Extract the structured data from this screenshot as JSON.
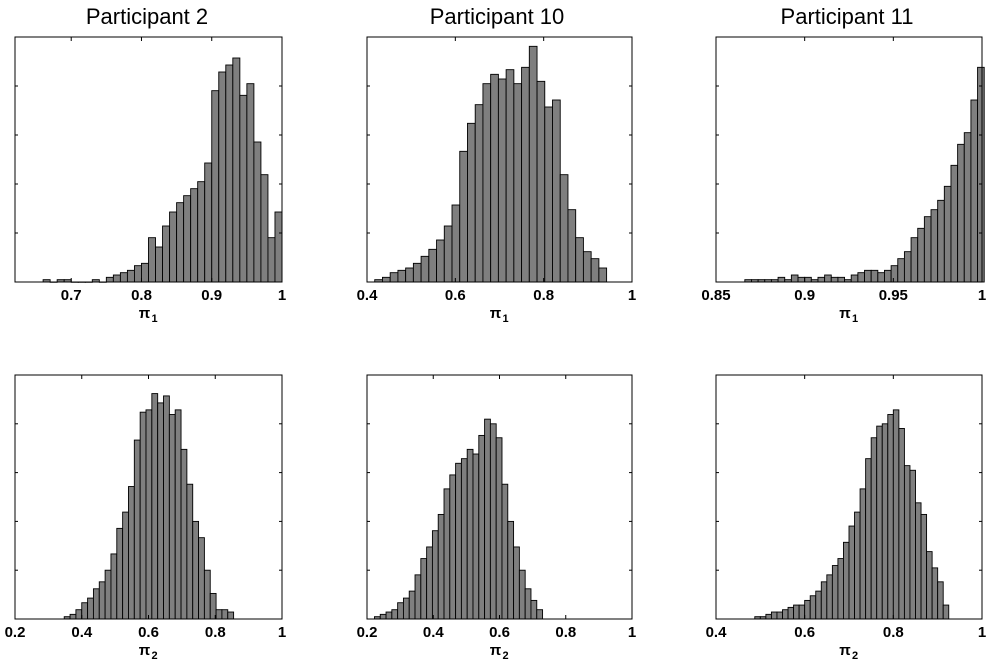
{
  "chart_data": [
    {
      "type": "bar",
      "column_title": "Participant 2",
      "xlabel": "π",
      "xlabel_sub": "1",
      "xlim": [
        0.62,
        1.0
      ],
      "ylim": [
        0,
        105
      ],
      "xticks": [
        0.7,
        0.8,
        0.9,
        1.0
      ],
      "xtick_labels": [
        "0.7",
        "0.8",
        "0.9",
        "1"
      ],
      "bin_width": 0.01,
      "bin_starts": [
        0.66,
        0.67,
        0.68,
        0.69,
        0.7,
        0.71,
        0.72,
        0.73,
        0.74,
        0.75,
        0.76,
        0.77,
        0.78,
        0.79,
        0.8,
        0.81,
        0.82,
        0.83,
        0.84,
        0.85,
        0.86,
        0.87,
        0.88,
        0.89,
        0.9,
        0.91,
        0.92,
        0.93,
        0.94,
        0.95,
        0.96,
        0.97,
        0.98,
        0.99
      ],
      "values": [
        1,
        0,
        1,
        1,
        0,
        0,
        0,
        1,
        0,
        2,
        3,
        4,
        5,
        7,
        8,
        19,
        15,
        24,
        30,
        34,
        37,
        40,
        43,
        51,
        82,
        90,
        93,
        96,
        80,
        85,
        60,
        46,
        19,
        30
      ]
    },
    {
      "type": "bar",
      "column_title": "Participant 10",
      "xlabel": "π",
      "xlabel_sub": "1",
      "xlim": [
        0.4,
        1.0
      ],
      "ylim": [
        0,
        105
      ],
      "xticks": [
        0.4,
        0.6,
        0.8,
        1.0
      ],
      "xtick_labels": [
        "0.4",
        "0.6",
        "0.8",
        "1"
      ],
      "bin_width": 0.0175,
      "bin_starts": [
        0.4175,
        0.435,
        0.4525,
        0.47,
        0.4875,
        0.505,
        0.5225,
        0.54,
        0.5575,
        0.575,
        0.5925,
        0.61,
        0.6275,
        0.645,
        0.6625,
        0.68,
        0.6975,
        0.715,
        0.7325,
        0.75,
        0.7675,
        0.785,
        0.8025,
        0.82,
        0.8375,
        0.855,
        0.8725,
        0.89,
        0.9075,
        0.925
      ],
      "values": [
        1,
        2,
        4,
        5,
        6,
        8,
        11,
        14,
        18,
        24,
        33,
        56,
        68,
        76,
        85,
        89,
        87,
        91,
        85,
        92,
        101,
        86,
        75,
        78,
        46,
        31,
        19,
        13,
        10,
        6
      ]
    },
    {
      "type": "bar",
      "column_title": "Participant 11",
      "xlabel": "π",
      "xlabel_sub": "1",
      "xlim": [
        0.85,
        1.0
      ],
      "ylim": [
        0,
        105
      ],
      "xticks": [
        0.85,
        0.9,
        0.95,
        1.0
      ],
      "xtick_labels": [
        "0.85",
        "0.9",
        "0.95",
        "1"
      ],
      "bin_width": 0.00375,
      "bin_starts": [
        0.86625,
        0.87,
        0.87375,
        0.8775,
        0.88125,
        0.885,
        0.88875,
        0.8925,
        0.89625,
        0.9,
        0.90375,
        0.9075,
        0.91125,
        0.915,
        0.91875,
        0.9225,
        0.92625,
        0.93,
        0.93375,
        0.9375,
        0.94125,
        0.945,
        0.94875,
        0.9525,
        0.95625,
        0.96,
        0.96375,
        0.9675,
        0.97125,
        0.975,
        0.97875,
        0.9825,
        0.98625,
        0.99,
        0.99375,
        0.9975
      ],
      "values": [
        1,
        1,
        1,
        1,
        1,
        2,
        1,
        3,
        2,
        2,
        1,
        2,
        3,
        2,
        2,
        1,
        3,
        4,
        5,
        5,
        4,
        5,
        7,
        10,
        13,
        19,
        23,
        28,
        31,
        35,
        41,
        50,
        59,
        64,
        78,
        92
      ]
    },
    {
      "type": "bar",
      "column_title": "Participant 2",
      "xlabel": "π",
      "xlabel_sub": "2",
      "xlim": [
        0.2,
        1.0
      ],
      "ylim": [
        0,
        105
      ],
      "xticks": [
        0.2,
        0.4,
        0.6,
        0.8,
        1.0
      ],
      "xtick_labels": [
        "0.2",
        "0.4",
        "0.6",
        "0.8",
        "1"
      ],
      "bin_width": 0.0175,
      "bin_starts": [
        0.3475,
        0.365,
        0.3825,
        0.4,
        0.4175,
        0.435,
        0.4525,
        0.47,
        0.4875,
        0.505,
        0.5225,
        0.54,
        0.5575,
        0.575,
        0.5925,
        0.61,
        0.6275,
        0.645,
        0.6625,
        0.68,
        0.6975,
        0.715,
        0.7325,
        0.75,
        0.7675,
        0.785,
        0.8025,
        0.82,
        0.8375
      ],
      "values": [
        1,
        2,
        4,
        7,
        9,
        13,
        16,
        21,
        28,
        39,
        46,
        57,
        77,
        89,
        90,
        97,
        93,
        96,
        88,
        90,
        73,
        58,
        42,
        35,
        21,
        11,
        4,
        4,
        3
      ]
    },
    {
      "type": "bar",
      "column_title": "Participant 10",
      "xlabel": "π",
      "xlabel_sub": "2",
      "xlim": [
        0.2,
        1.0
      ],
      "ylim": [
        0,
        105
      ],
      "xticks": [
        0.2,
        0.4,
        0.6,
        0.8,
        1.0
      ],
      "xtick_labels": [
        "0.2",
        "0.4",
        "0.6",
        "0.8",
        "1"
      ],
      "bin_width": 0.0175,
      "bin_starts": [
        0.2225,
        0.24,
        0.2575,
        0.275,
        0.2925,
        0.31,
        0.3275,
        0.345,
        0.3625,
        0.38,
        0.3975,
        0.415,
        0.4325,
        0.45,
        0.4675,
        0.485,
        0.5025,
        0.52,
        0.5375,
        0.555,
        0.5725,
        0.59,
        0.6075,
        0.625,
        0.6425,
        0.66,
        0.6775,
        0.695,
        0.7125
      ],
      "values": [
        1,
        2,
        3,
        4,
        7,
        9,
        12,
        19,
        26,
        31,
        38,
        45,
        56,
        62,
        67,
        69,
        73,
        71,
        79,
        86,
        84,
        78,
        58,
        42,
        31,
        21,
        13,
        8,
        4
      ]
    },
    {
      "type": "bar",
      "column_title": "Participant 11",
      "xlabel": "π",
      "xlabel_sub": "2",
      "xlim": [
        0.4,
        1.0
      ],
      "ylim": [
        0,
        105
      ],
      "xticks": [
        0.4,
        0.6,
        0.8,
        1.0
      ],
      "xtick_labels": [
        "0.4",
        "0.6",
        "0.8",
        "1"
      ],
      "bin_width": 0.0125,
      "bin_starts": [
        0.4875,
        0.5,
        0.5125,
        0.525,
        0.5375,
        0.55,
        0.5625,
        0.575,
        0.5875,
        0.6,
        0.6125,
        0.625,
        0.6375,
        0.65,
        0.6625,
        0.675,
        0.6875,
        0.7,
        0.7125,
        0.725,
        0.7375,
        0.75,
        0.7625,
        0.775,
        0.7875,
        0.8,
        0.8125,
        0.825,
        0.8375,
        0.85,
        0.8625,
        0.875,
        0.8875,
        0.9,
        0.9125
      ],
      "values": [
        1,
        1,
        2,
        3,
        3,
        4,
        5,
        6,
        6,
        8,
        10,
        12,
        16,
        19,
        23,
        26,
        33,
        40,
        46,
        56,
        69,
        78,
        83,
        84,
        88,
        90,
        82,
        66,
        64,
        50,
        45,
        29,
        22,
        16,
        6
      ]
    }
  ]
}
